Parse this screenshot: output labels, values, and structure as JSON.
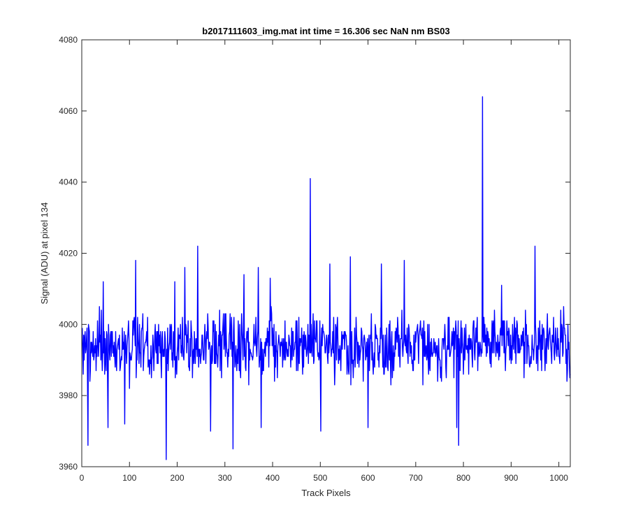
{
  "chart_data": {
    "type": "line",
    "title": "b2017111603_img.mat int time = 16.306 sec  NaN nm BS03",
    "xlabel": "Track Pixels",
    "ylabel": "Signal (ADU) at pixel 134",
    "xlim": [
      0,
      1024
    ],
    "ylim": [
      3960,
      4080
    ],
    "xticks": [
      0,
      100,
      200,
      300,
      400,
      500,
      600,
      700,
      800,
      900,
      1000
    ],
    "yticks": [
      3960,
      3980,
      4000,
      4020,
      4040,
      4060,
      4080
    ],
    "grid": false,
    "series_color": "#0000ff",
    "series": [
      {
        "baseline": 3994,
        "spread": 13,
        "npoints": 1024,
        "x_start": 1,
        "x_step": 1,
        "key_points": [
          {
            "x": 13,
            "y": 3966
          },
          {
            "x": 45,
            "y": 4012
          },
          {
            "x": 55,
            "y": 3971
          },
          {
            "x": 90,
            "y": 3972
          },
          {
            "x": 113,
            "y": 4018
          },
          {
            "x": 177,
            "y": 3962
          },
          {
            "x": 195,
            "y": 4012
          },
          {
            "x": 216,
            "y": 4016
          },
          {
            "x": 243,
            "y": 4022
          },
          {
            "x": 270,
            "y": 3970
          },
          {
            "x": 317,
            "y": 3965
          },
          {
            "x": 340,
            "y": 4014
          },
          {
            "x": 370,
            "y": 4016
          },
          {
            "x": 376,
            "y": 3971
          },
          {
            "x": 395,
            "y": 4013
          },
          {
            "x": 479,
            "y": 4041
          },
          {
            "x": 501,
            "y": 3970
          },
          {
            "x": 520,
            "y": 4017
          },
          {
            "x": 563,
            "y": 4019
          },
          {
            "x": 600,
            "y": 3971
          },
          {
            "x": 628,
            "y": 4017
          },
          {
            "x": 676,
            "y": 4018
          },
          {
            "x": 786,
            "y": 3971
          },
          {
            "x": 790,
            "y": 3966
          },
          {
            "x": 840,
            "y": 4064
          },
          {
            "x": 880,
            "y": 4011
          },
          {
            "x": 950,
            "y": 4022
          },
          {
            "x": 1010,
            "y": 4005
          }
        ]
      }
    ]
  }
}
